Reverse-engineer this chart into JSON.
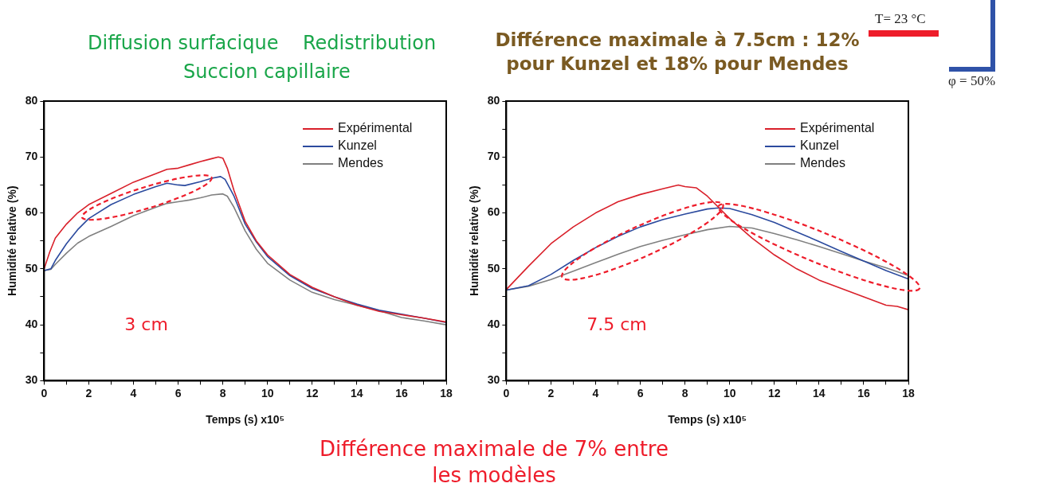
{
  "chart_data": [
    {
      "type": "line",
      "xlabel": "Temps (s) x10⁵",
      "ylabel": "Humidité relative (%)",
      "xlim": [
        0,
        18
      ],
      "xticks": [
        0,
        {
          "value": 1,
          "label": null
        },
        2,
        {
          "value": 3,
          "label": null
        },
        4,
        {
          "value": 5,
          "label": null
        },
        6,
        {
          "value": 7,
          "label": null
        },
        8,
        {
          "value": 9,
          "label": null
        },
        10,
        {
          "value": 11,
          "label": null
        },
        12,
        {
          "value": 13,
          "label": null
        },
        14,
        {
          "value": 15,
          "label": null
        },
        16,
        {
          "value": 17,
          "label": null
        },
        18
      ],
      "ylim": [
        30,
        80
      ],
      "yticks": [
        30,
        {
          "value": 35,
          "label": null
        },
        40,
        {
          "value": 45,
          "label": null
        },
        50,
        {
          "value": 55,
          "label": null
        },
        60,
        {
          "value": 65,
          "label": null
        },
        70,
        {
          "value": 75,
          "label": null
        },
        80
      ],
      "legend": "top right",
      "marker": "none",
      "series": [
        {
          "name": "Expérimental",
          "color": "#d9202a",
          "x": [
            0,
            0.25,
            0.5,
            1,
            1.5,
            2,
            3,
            4,
            5,
            5.5,
            6,
            6.5,
            7,
            7.5,
            7.8,
            8,
            8.2,
            8.5,
            9,
            9.5,
            10,
            11,
            12,
            13,
            14,
            15,
            16,
            17,
            18
          ],
          "values": [
            50,
            53,
            55.5,
            58,
            60,
            61.5,
            63.5,
            65.5,
            67,
            67.8,
            68,
            68.6,
            69.2,
            69.7,
            70,
            69.8,
            68,
            64,
            58.5,
            55,
            52.5,
            49,
            46.7,
            45,
            43.5,
            42.4,
            41.8,
            41.2,
            40.5
          ]
        },
        {
          "name": "Kunzel",
          "color": "#2b4a9e",
          "x": [
            0,
            0.3,
            0.5,
            1,
            1.5,
            2,
            3,
            4,
            5,
            5.5,
            6,
            6.3,
            7,
            7.5,
            7.9,
            8.1,
            8.5,
            9,
            9.5,
            10,
            11,
            12,
            13,
            14,
            15,
            16,
            17,
            18
          ],
          "values": [
            49.7,
            50,
            51.5,
            54.5,
            57,
            59,
            61.5,
            63.3,
            64.7,
            65.3,
            65,
            64.9,
            65.6,
            66.2,
            66.5,
            66,
            63,
            58,
            54.8,
            52.2,
            48.8,
            46.5,
            45,
            43.7,
            42.6,
            41.9,
            41.2,
            40.4
          ]
        },
        {
          "name": "Mendes",
          "color": "#808080",
          "x": [
            0,
            0.3,
            0.5,
            1,
            1.5,
            2,
            3,
            4,
            5,
            5.5,
            6,
            6.5,
            7,
            7.5,
            8,
            8.2,
            8.5,
            9,
            9.5,
            10,
            11,
            12,
            13,
            14,
            15,
            16,
            17,
            18
          ],
          "values": [
            49.7,
            49.9,
            50.8,
            52.8,
            54.6,
            55.8,
            57.6,
            59.5,
            61,
            61.7,
            62,
            62.3,
            62.7,
            63.2,
            63.4,
            63,
            61,
            56.8,
            53.5,
            51,
            48,
            45.8,
            44.5,
            43.5,
            42.5,
            41.3,
            40.7,
            40
          ]
        }
      ],
      "annotations": [
        "Diffusion surfacique",
        "Redistribution",
        "Succion capillaire",
        "3 cm",
        "Différence maximale de 7% entre les modèles"
      ]
    },
    {
      "type": "line",
      "xlabel": "Temps (s) x10⁵",
      "ylabel": "Humidité relative (%)",
      "xlim": [
        0,
        18
      ],
      "xticks": [
        0,
        {
          "value": 1,
          "label": null
        },
        2,
        {
          "value": 3,
          "label": null
        },
        4,
        {
          "value": 5,
          "label": null
        },
        6,
        {
          "value": 7,
          "label": null
        },
        8,
        {
          "value": 9,
          "label": null
        },
        10,
        {
          "value": 11,
          "label": null
        },
        12,
        {
          "value": 13,
          "label": null
        },
        14,
        {
          "value": 15,
          "label": null
        },
        16,
        {
          "value": 17,
          "label": null
        },
        18
      ],
      "ylim": [
        30,
        80
      ],
      "yticks": [
        30,
        {
          "value": 35,
          "label": null
        },
        40,
        {
          "value": 45,
          "label": null
        },
        50,
        {
          "value": 55,
          "label": null
        },
        60,
        {
          "value": 65,
          "label": null
        },
        70,
        {
          "value": 75,
          "label": null
        },
        80
      ],
      "legend": "top right",
      "marker": "none",
      "series": [
        {
          "name": "Expérimental",
          "color": "#d9202a",
          "x": [
            0,
            1,
            2,
            3,
            4,
            5,
            6,
            7,
            7.7,
            8,
            8.5,
            9,
            9.5,
            10,
            11,
            12,
            13,
            14,
            15,
            16,
            17,
            17.5,
            18
          ],
          "values": [
            46.3,
            50.5,
            54.5,
            57.5,
            60,
            62,
            63.3,
            64.3,
            65,
            64.7,
            64.5,
            63,
            61,
            59,
            55.5,
            52.5,
            50,
            48,
            46.5,
            45,
            43.5,
            43.3,
            42.7
          ]
        },
        {
          "name": "Kunzel",
          "color": "#2b4a9e",
          "x": [
            0,
            1,
            2,
            3,
            4,
            5,
            6,
            7,
            8,
            9,
            9.5,
            10,
            11,
            12,
            13,
            14,
            15,
            16,
            17,
            18
          ],
          "values": [
            46.2,
            47,
            49,
            51.5,
            53.8,
            55.8,
            57.5,
            58.8,
            59.8,
            60.7,
            60.9,
            60.8,
            59.7,
            58.3,
            56.6,
            54.9,
            53.1,
            51.4,
            49.7,
            48.2
          ]
        },
        {
          "name": "Mendes",
          "color": "#808080",
          "x": [
            0,
            1,
            2,
            3,
            4,
            5,
            6,
            7,
            8,
            9,
            10,
            11,
            12,
            13,
            14,
            15,
            16,
            17,
            18
          ],
          "values": [
            46.2,
            46.9,
            48.1,
            49.6,
            51.1,
            52.6,
            54,
            55.1,
            56.1,
            57,
            57.6,
            57.3,
            56.3,
            55.2,
            54,
            52.7,
            51.4,
            50.2,
            48.8
          ]
        }
      ],
      "annotations": [
        "Différence maximale à 7.5cm : 12% pour Kunzel et 18% pour Mendes",
        "7.5 cm",
        "T= 23 °C",
        "φ = 50%"
      ]
    }
  ]
}
